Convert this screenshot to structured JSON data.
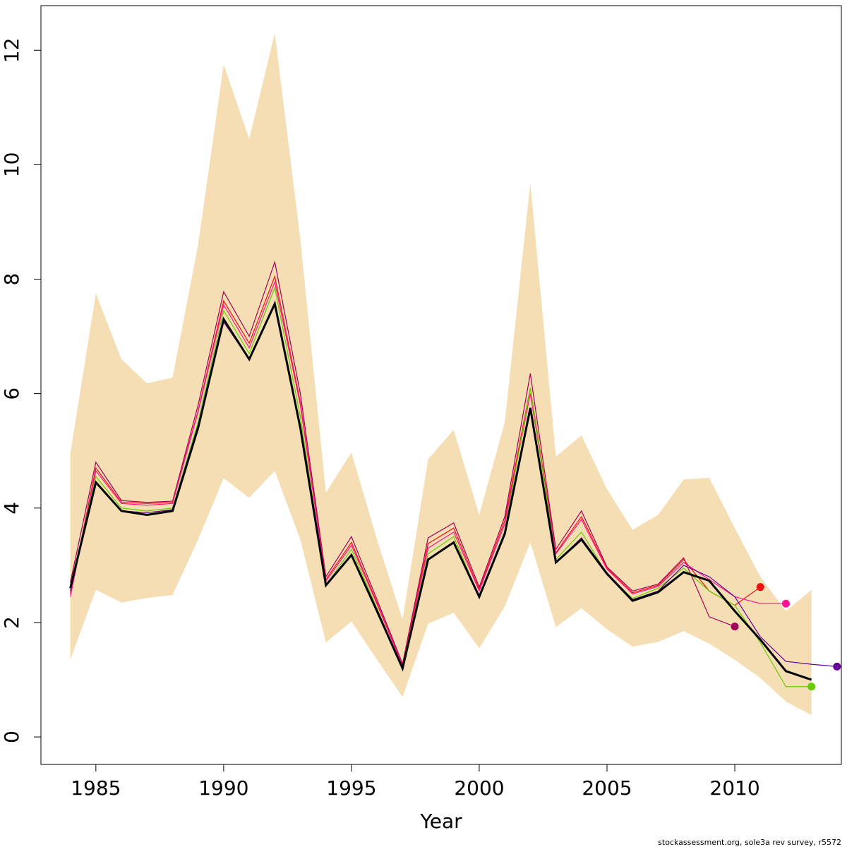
{
  "chart_data": {
    "type": "line",
    "x_label": "Year",
    "footer": "stockassessment.org, sole3a  rev  survey, r5572",
    "x": [
      1984,
      1985,
      1986,
      1987,
      1988,
      1989,
      1990,
      1991,
      1992,
      1993,
      1994,
      1995,
      1996,
      1997,
      1998,
      1999,
      2000,
      2001,
      2002,
      2003,
      2004,
      2005,
      2006,
      2007,
      2008,
      2009,
      2010,
      2011,
      2012,
      2013,
      2014
    ],
    "xlim": [
      1982.85,
      2014.17
    ],
    "xticks": [
      1985,
      1990,
      1995,
      2000,
      2005,
      2010
    ],
    "ylim": [
      -0.48,
      12.78
    ],
    "yticks": [
      0,
      2,
      4,
      6,
      8,
      10,
      12
    ],
    "band": {
      "color": "#f5deb3",
      "upper": [
        4.95,
        7.75,
        6.6,
        6.18,
        6.28,
        8.6,
        11.75,
        10.45,
        12.3,
        8.7,
        4.27,
        4.97,
        3.45,
        2.05,
        4.85,
        5.37,
        3.88,
        5.5,
        9.68,
        4.9,
        5.27,
        4.33,
        3.62,
        3.88,
        4.5,
        4.53,
        3.65,
        2.8,
        2.2,
        2.57,
        null
      ],
      "lower": [
        1.35,
        2.57,
        2.35,
        2.43,
        2.48,
        3.45,
        4.52,
        4.18,
        4.65,
        3.45,
        1.65,
        2.02,
        1.35,
        0.7,
        1.98,
        2.17,
        1.55,
        2.28,
        3.4,
        1.92,
        2.25,
        1.88,
        1.58,
        1.66,
        1.85,
        1.63,
        1.35,
        1.03,
        0.62,
        0.38,
        null
      ]
    },
    "series": [
      {
        "color": "#a0005a",
        "values": [
          2.7,
          4.8,
          4.13,
          4.1,
          4.12,
          5.8,
          7.78,
          7.0,
          8.3,
          6.0,
          2.8,
          3.5,
          2.4,
          1.28,
          3.48,
          3.74,
          2.62,
          3.85,
          6.35,
          3.28,
          3.95,
          2.97,
          2.55,
          2.67,
          3.13,
          2.1,
          1.93,
          null,
          null,
          null,
          null
        ]
      },
      {
        "color": "#ee1111",
        "values": [
          2.5,
          4.7,
          4.1,
          4.08,
          4.1,
          5.7,
          7.62,
          6.88,
          8.05,
          5.85,
          2.75,
          3.4,
          2.35,
          1.25,
          3.38,
          3.65,
          2.58,
          3.78,
          6.1,
          3.22,
          3.85,
          2.95,
          2.52,
          2.65,
          3.1,
          2.55,
          2.3,
          2.62,
          null,
          null,
          null
        ]
      },
      {
        "color": "#ff1493",
        "values": [
          2.45,
          4.65,
          4.08,
          4.05,
          4.08,
          5.68,
          7.55,
          6.8,
          7.95,
          5.8,
          2.72,
          3.35,
          2.32,
          1.24,
          3.3,
          3.58,
          2.55,
          3.72,
          6.0,
          3.2,
          3.8,
          2.93,
          2.5,
          2.63,
          3.05,
          2.75,
          2.45,
          2.33,
          2.33,
          null,
          null
        ]
      },
      {
        "color": "#66cc00",
        "values": [
          2.6,
          4.55,
          4.0,
          3.95,
          4.0,
          5.5,
          7.45,
          6.7,
          7.85,
          5.6,
          2.65,
          3.28,
          2.25,
          1.2,
          3.2,
          3.5,
          2.45,
          3.6,
          6.1,
          3.1,
          3.58,
          2.85,
          2.42,
          2.6,
          2.95,
          2.55,
          2.3,
          1.65,
          0.88,
          0.88,
          null
        ]
      },
      {
        "color": "#660099",
        "values": [
          2.55,
          4.45,
          3.95,
          3.92,
          3.97,
          5.45,
          7.25,
          6.6,
          7.55,
          5.45,
          2.65,
          3.18,
          2.2,
          1.2,
          3.1,
          3.4,
          2.45,
          3.55,
          5.7,
          3.05,
          3.48,
          2.87,
          2.4,
          2.55,
          3.0,
          2.8,
          2.45,
          1.75,
          1.32,
          1.27,
          1.23
        ]
      },
      {
        "color": "#000000",
        "values": [
          2.6,
          4.45,
          3.95,
          3.88,
          3.95,
          5.4,
          7.3,
          6.6,
          7.57,
          5.4,
          2.65,
          3.18,
          2.2,
          1.2,
          3.1,
          3.4,
          2.45,
          3.55,
          5.75,
          3.05,
          3.45,
          2.85,
          2.38,
          2.53,
          2.88,
          2.73,
          2.2,
          1.7,
          1.15,
          1.0,
          null
        ]
      }
    ]
  }
}
